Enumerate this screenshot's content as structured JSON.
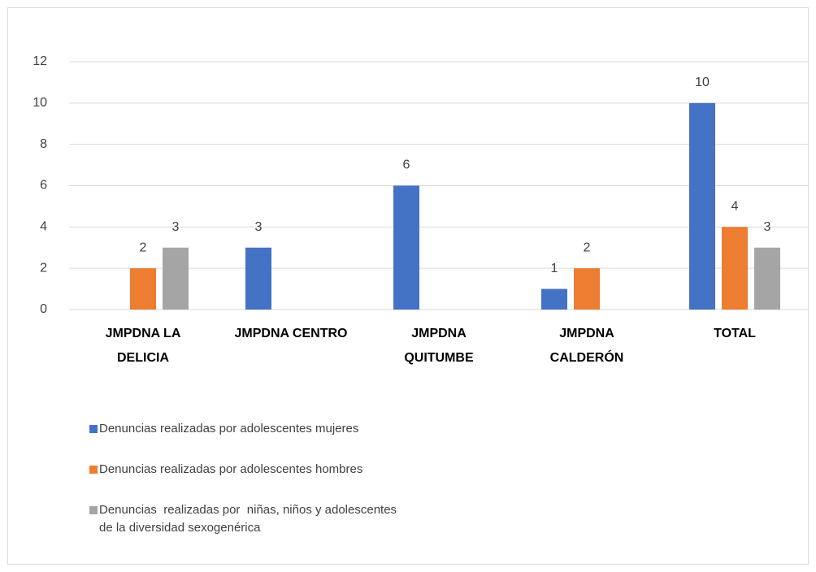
{
  "chart_data": {
    "type": "bar",
    "categories": [
      "JMPDNA LA DELICIA",
      "JMPDNA CENTRO",
      "JMPDNA QUITUMBE",
      "JMPDNA CALDERÓN",
      "TOTAL"
    ],
    "series": [
      {
        "name": "Denuncias realizadas por adolescentes mujeres",
        "color": "#4472c4",
        "values": [
          null,
          3,
          6,
          1,
          10
        ]
      },
      {
        "name": "Denuncias realizadas por adolescentes hombres",
        "color": "#ed7d31",
        "values": [
          2,
          null,
          null,
          2,
          4
        ]
      },
      {
        "name": "Denuncias  realizadas por  niñas, niños y adolescentes de la diversidad sexogenérica",
        "color": "#a5a5a5",
        "values": [
          3,
          null,
          null,
          null,
          3
        ]
      }
    ],
    "ylim": [
      0,
      12
    ],
    "yticks": [
      0,
      2,
      4,
      6,
      8,
      10,
      12
    ],
    "grid": true,
    "legend": "bottom-left"
  }
}
